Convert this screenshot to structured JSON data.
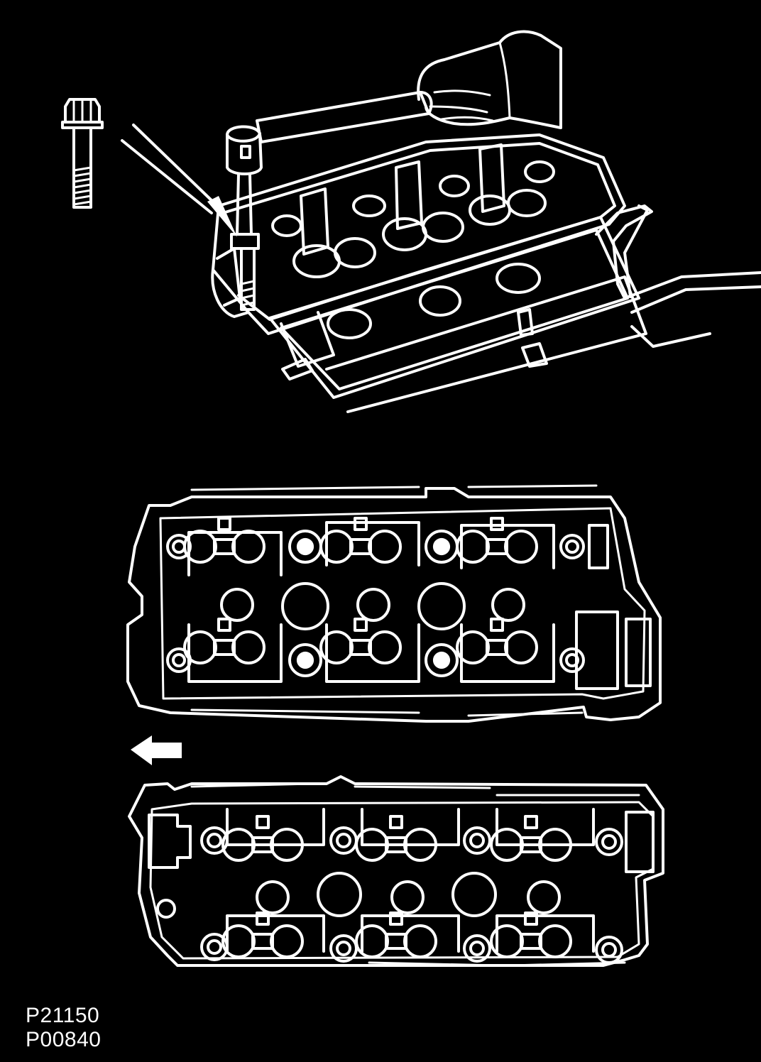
{
  "figure": {
    "codes": [
      "P21150",
      "P00840"
    ],
    "colors": {
      "background": "#000000",
      "line": "#ffffff"
    },
    "icons": {
      "bolt": "hex-flange-bolt-icon",
      "wrench": "torque-wrench-icon",
      "pointer": "pointer-arrow-icon",
      "front": "front-direction-arrow-icon"
    },
    "views": [
      "cylinder-head-perspective",
      "cylinder-head-top-rh",
      "cylinder-head-top-lh"
    ]
  }
}
